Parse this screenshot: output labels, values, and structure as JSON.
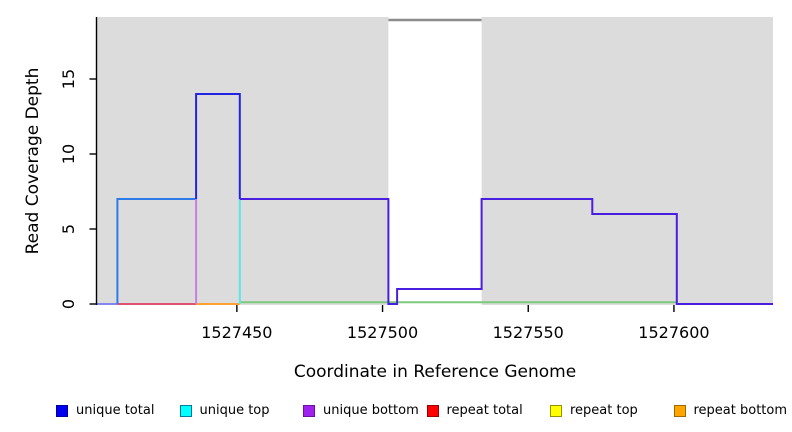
{
  "chart_data": {
    "type": "step-line",
    "title": "",
    "xlabel": "Coordinate in Reference Genome",
    "ylabel": "Read Coverage Depth",
    "x_ticks": [
      1527450,
      1527500,
      1527550,
      1527600
    ],
    "y_ticks": [
      0,
      5,
      10,
      15
    ],
    "xlim": [
      1527402,
      1527634
    ],
    "ylim": [
      0,
      19.2
    ],
    "grid": false,
    "panel_bg": "#DCDCDC",
    "axis_color": "#000000",
    "gap_region": {
      "start": 1527502,
      "end": 1527534,
      "fill": "#FFFFFF",
      "marker_depth": 18.93,
      "marker_color": "#8C8C8C"
    },
    "series": [
      {
        "name": "unique total",
        "color": "#0000FF",
        "steps": [
          [
            1527402,
            0
          ],
          [
            1527409,
            7
          ],
          [
            1527436,
            14
          ],
          [
            1527451,
            7
          ],
          [
            1527502,
            0
          ],
          [
            1527505,
            1
          ],
          [
            1527534,
            7
          ],
          [
            1527572,
            6
          ],
          [
            1527601,
            0
          ],
          [
            1527634,
            0
          ]
        ]
      },
      {
        "name": "unique top",
        "color": "#00FFFF",
        "steps": [
          [
            1527402,
            0
          ],
          [
            1527409,
            7
          ],
          [
            1527451,
            0
          ],
          [
            1527634,
            0
          ]
        ]
      },
      {
        "name": "unique bottom",
        "color": "#A020F0",
        "steps": [
          [
            1527402,
            0
          ],
          [
            1527436,
            7
          ],
          [
            1527502,
            0
          ],
          [
            1527505,
            1
          ],
          [
            1527534,
            7
          ],
          [
            1527572,
            6
          ],
          [
            1527601,
            0
          ],
          [
            1527634,
            0
          ]
        ]
      },
      {
        "name": "repeat total",
        "color": "#FF0000",
        "steps": [
          [
            1527409,
            0
          ],
          [
            1527436,
            0
          ]
        ]
      },
      {
        "name": "repeat top",
        "color": "#FFFF00",
        "steps": [
          [
            1527402,
            0
          ],
          [
            1527634,
            0
          ]
        ]
      },
      {
        "name": "repeat bottom",
        "color": "#FFA500",
        "steps": [
          [
            1527436,
            0
          ],
          [
            1527451,
            0
          ]
        ]
      }
    ],
    "rendered_segments": [
      {
        "name": "baseline-green",
        "color": "#7CC87C",
        "pts": [
          [
            1527451,
            0.12
          ],
          [
            1527601,
            0.12
          ]
        ]
      },
      {
        "name": "unique-zero-left",
        "color": "#8585EE",
        "pts": [
          [
            1527402,
            0
          ],
          [
            1527409,
            0
          ]
        ]
      },
      {
        "name": "repeat-total-line",
        "color": "#E05070",
        "pts": [
          [
            1527409,
            0
          ],
          [
            1527436,
            0
          ]
        ]
      },
      {
        "name": "repeat-bottom-line",
        "color": "#FFA030",
        "pts": [
          [
            1527436,
            0
          ],
          [
            1527451,
            0
          ]
        ]
      },
      {
        "name": "unique-top-rise",
        "color": "#2E7BE8",
        "pts": [
          [
            1527409,
            0
          ],
          [
            1527409,
            7
          ],
          [
            1527436,
            7
          ]
        ]
      },
      {
        "name": "unique-bottom-rise",
        "color": "#C77FE0",
        "pts": [
          [
            1527436,
            0
          ],
          [
            1527436,
            7
          ]
        ]
      },
      {
        "name": "unique-top-fall",
        "color": "#58E8EA",
        "pts": [
          [
            1527451,
            0
          ],
          [
            1527451,
            7
          ]
        ]
      },
      {
        "name": "unique-total-peak",
        "color": "#2424E0",
        "pts": [
          [
            1527436,
            7
          ],
          [
            1527436,
            14
          ],
          [
            1527451,
            14
          ],
          [
            1527451,
            7
          ]
        ]
      },
      {
        "name": "unique-total-path",
        "color": "#4A1EE0",
        "pts": [
          [
            1527451,
            7
          ],
          [
            1527502,
            7
          ],
          [
            1527502,
            0
          ],
          [
            1527505,
            0
          ],
          [
            1527505,
            1
          ],
          [
            1527534,
            1
          ],
          [
            1527534,
            7
          ],
          [
            1527572,
            7
          ],
          [
            1527572,
            6
          ],
          [
            1527601,
            6
          ],
          [
            1527601,
            0
          ],
          [
            1527634,
            0
          ]
        ]
      }
    ]
  },
  "legend": {
    "items": [
      {
        "label": "unique total",
        "color": "#0000EE",
        "border": "#0000A0"
      },
      {
        "label": "unique top",
        "color": "#00FFFF",
        "border": "#007A99"
      },
      {
        "label": "unique bottom",
        "color": "#A020F0",
        "border": "#6A10A0"
      },
      {
        "label": "repeat total",
        "color": "#FF0000",
        "border": "#990000"
      },
      {
        "label": "repeat top",
        "color": "#FFFF00",
        "border": "#999100"
      },
      {
        "label": "repeat bottom",
        "color": "#FFA500",
        "border": "#A06900"
      }
    ]
  }
}
